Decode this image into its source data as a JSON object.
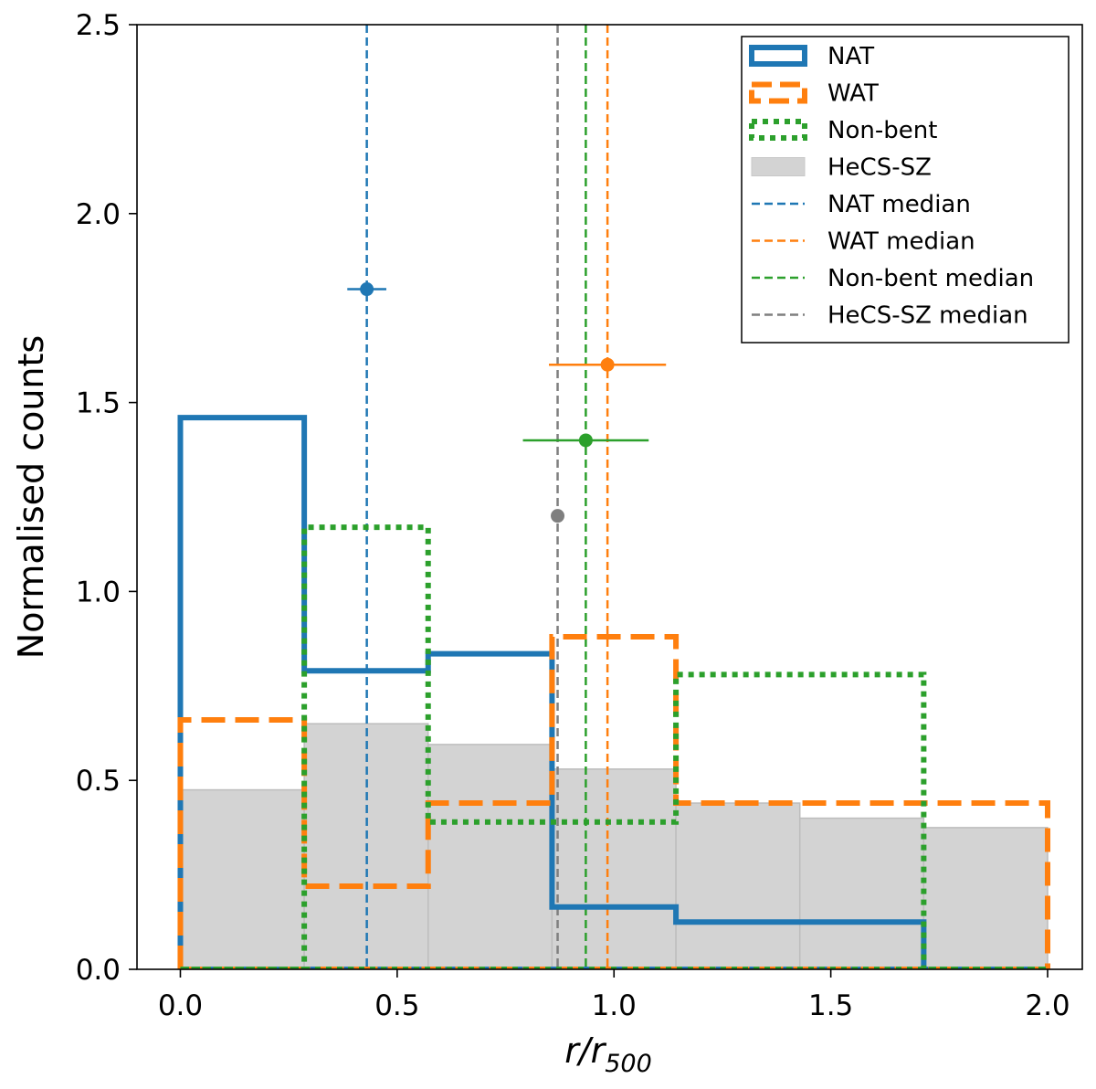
{
  "chart_data": {
    "type": "histogram",
    "xlabel": {
      "main": "r/r",
      "sub": "500"
    },
    "ylabel": "Normalised counts",
    "xlim": [
      -0.1,
      2.08
    ],
    "ylim": [
      0,
      2.5
    ],
    "xticks": [
      0.0,
      0.5,
      1.0,
      1.5,
      2.0
    ],
    "xtick_labels": [
      "0.0",
      "0.5",
      "1.0",
      "1.5",
      "2.0"
    ],
    "yticks": [
      0.0,
      0.5,
      1.0,
      1.5,
      2.0,
      2.5
    ],
    "ytick_labels": [
      "0.0",
      "0.5",
      "1.0",
      "1.5",
      "2.0",
      "2.5"
    ],
    "bin_edges": [
      0.0,
      0.2857,
      0.5714,
      0.8571,
      1.1429,
      1.4286,
      1.7143,
      2.0
    ],
    "series": [
      {
        "name": "NAT",
        "style": "solid",
        "color": "#1f77b4",
        "values": [
          1.46,
          0.79,
          0.835,
          0.165,
          0.125,
          0.125,
          0.0
        ]
      },
      {
        "name": "WAT",
        "style": "dashed",
        "color": "#ff7f0e",
        "values": [
          0.66,
          0.22,
          0.44,
          0.88,
          0.44,
          0.44,
          0.44
        ]
      },
      {
        "name": "Non-bent",
        "style": "dotted",
        "color": "#2ca02c",
        "values": [
          0.0,
          1.17,
          0.39,
          0.39,
          0.78,
          0.78,
          0.0
        ]
      }
    ],
    "background_hist": {
      "name": "HeCS-SZ",
      "color": "#d3d3d3",
      "values": [
        0.475,
        0.65,
        0.595,
        0.53,
        0.44,
        0.4,
        0.375
      ]
    },
    "medians": [
      {
        "name": "NAT median",
        "color": "#1f77b4",
        "x": 0.43,
        "marker_y": 1.8,
        "err_low": 0.045,
        "err_high": 0.045
      },
      {
        "name": "WAT median",
        "color": "#ff7f0e",
        "x": 0.985,
        "marker_y": 1.6,
        "err_low": 0.135,
        "err_high": 0.135
      },
      {
        "name": "Non-bent median",
        "color": "#2ca02c",
        "x": 0.935,
        "marker_y": 1.4,
        "err_low": 0.145,
        "err_high": 0.145
      },
      {
        "name": "HeCS-SZ median",
        "color": "#7f7f7f",
        "x": 0.87,
        "marker_y": 1.2,
        "err_low": 0.01,
        "err_high": 0.01
      }
    ],
    "legend": {
      "position": "top-right",
      "entries": [
        "NAT",
        "WAT",
        "Non-bent",
        "HeCS-SZ",
        "NAT median",
        "WAT median",
        "Non-bent median",
        "HeCS-SZ median"
      ]
    }
  }
}
